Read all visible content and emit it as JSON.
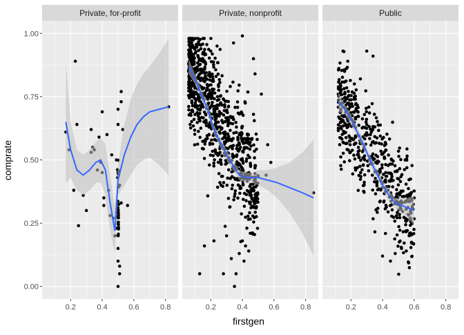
{
  "chart_data": {
    "type": "scatter",
    "xlabel": "firstgen",
    "ylabel": "comprate",
    "xlim": [
      0.02,
      0.88
    ],
    "ylim": [
      -0.05,
      1.05
    ],
    "x_ticks": [
      "0.2",
      "0.4",
      "0.6",
      "0.8"
    ],
    "y_ticks": [
      "0.00",
      "0.25",
      "0.50",
      "0.75",
      "1.00"
    ],
    "grid": true,
    "colors": {
      "panel_bg": "#ebebeb",
      "strip_bg": "#d9d9d9",
      "grid": "#ffffff",
      "points": "#000000",
      "smooth_line": "#3366ff",
      "ribbon": "#bfbfbf"
    },
    "facets": [
      {
        "label": "Private, for-profit",
        "smooth": [
          [
            0.17,
            0.65
          ],
          [
            0.2,
            0.54
          ],
          [
            0.24,
            0.46
          ],
          [
            0.28,
            0.44
          ],
          [
            0.32,
            0.46
          ],
          [
            0.36,
            0.49
          ],
          [
            0.39,
            0.5
          ],
          [
            0.42,
            0.46
          ],
          [
            0.45,
            0.33
          ],
          [
            0.48,
            0.22
          ],
          [
            0.5,
            0.42
          ],
          [
            0.54,
            0.52
          ],
          [
            0.58,
            0.59
          ],
          [
            0.62,
            0.64
          ],
          [
            0.66,
            0.67
          ],
          [
            0.7,
            0.69
          ],
          [
            0.76,
            0.7
          ],
          [
            0.82,
            0.71
          ]
        ],
        "band_upper": [
          [
            0.17,
            0.89
          ],
          [
            0.2,
            0.65
          ],
          [
            0.24,
            0.54
          ],
          [
            0.28,
            0.52
          ],
          [
            0.32,
            0.54
          ],
          [
            0.36,
            0.57
          ],
          [
            0.39,
            0.59
          ],
          [
            0.42,
            0.56
          ],
          [
            0.45,
            0.44
          ],
          [
            0.48,
            0.31
          ],
          [
            0.5,
            0.48
          ],
          [
            0.54,
            0.64
          ],
          [
            0.58,
            0.74
          ],
          [
            0.62,
            0.8
          ],
          [
            0.66,
            0.84
          ],
          [
            0.7,
            0.87
          ],
          [
            0.76,
            0.92
          ],
          [
            0.82,
            0.98
          ]
        ],
        "band_lower": [
          [
            0.17,
            0.41
          ],
          [
            0.2,
            0.43
          ],
          [
            0.24,
            0.38
          ],
          [
            0.28,
            0.36
          ],
          [
            0.32,
            0.38
          ],
          [
            0.36,
            0.41
          ],
          [
            0.39,
            0.41
          ],
          [
            0.42,
            0.36
          ],
          [
            0.45,
            0.22
          ],
          [
            0.48,
            0.13
          ],
          [
            0.5,
            0.36
          ],
          [
            0.54,
            0.4
          ],
          [
            0.58,
            0.44
          ],
          [
            0.62,
            0.48
          ],
          [
            0.66,
            0.5
          ],
          [
            0.7,
            0.51
          ],
          [
            0.76,
            0.48
          ],
          [
            0.82,
            0.44
          ]
        ],
        "cloud": {
          "n": 0,
          "x_range": [
            0.2,
            0.4
          ],
          "y_center": 0.5,
          "y_slope": 0,
          "spread": 0.1
        },
        "points": [
          [
            0.17,
            0.61
          ],
          [
            0.19,
            0.54
          ],
          [
            0.23,
            0.89
          ],
          [
            0.22,
            0.38
          ],
          [
            0.24,
            0.64
          ],
          [
            0.25,
            0.24
          ],
          [
            0.28,
            0.36
          ],
          [
            0.3,
            0.3
          ],
          [
            0.33,
            0.53
          ],
          [
            0.33,
            0.62
          ],
          [
            0.34,
            0.55
          ],
          [
            0.35,
            0.54
          ],
          [
            0.37,
            0.46
          ],
          [
            0.38,
            0.59
          ],
          [
            0.39,
            0.49
          ],
          [
            0.4,
            0.45
          ],
          [
            0.41,
            0.32
          ],
          [
            0.43,
            0.6
          ],
          [
            0.45,
            0.28
          ],
          [
            0.46,
            0.52
          ],
          [
            0.47,
            0.27
          ],
          [
            0.48,
            0.2
          ],
          [
            0.49,
            0.23
          ],
          [
            0.49,
            0.5
          ],
          [
            0.5,
            0.64
          ],
          [
            0.5,
            0.1
          ],
          [
            0.5,
            0.0
          ],
          [
            0.5,
            0.15
          ],
          [
            0.51,
            0.08
          ],
          [
            0.51,
            0.05
          ],
          [
            0.51,
            0.4
          ],
          [
            0.52,
            0.77
          ],
          [
            0.52,
            0.73
          ],
          [
            0.52,
            0.33
          ],
          [
            0.53,
            0.62
          ],
          [
            0.56,
            0.32
          ],
          [
            0.82,
            0.71
          ],
          [
            0.4,
            0.69
          ],
          [
            0.41,
            0.35
          ],
          [
            0.44,
            0.38
          ],
          [
            0.5,
            0.7
          ]
        ],
        "column": {
          "x": 0.5,
          "from": 0.17,
          "to": 0.5,
          "n": 28
        }
      },
      {
        "label": "Private, nonprofit",
        "smooth": [
          [
            0.06,
            0.87
          ],
          [
            0.1,
            0.82
          ],
          [
            0.14,
            0.76
          ],
          [
            0.18,
            0.7
          ],
          [
            0.22,
            0.62
          ],
          [
            0.26,
            0.57
          ],
          [
            0.3,
            0.52
          ],
          [
            0.34,
            0.48
          ],
          [
            0.38,
            0.44
          ],
          [
            0.42,
            0.43
          ],
          [
            0.46,
            0.43
          ],
          [
            0.5,
            0.43
          ],
          [
            0.56,
            0.42
          ],
          [
            0.62,
            0.41
          ],
          [
            0.7,
            0.39
          ],
          [
            0.78,
            0.37
          ],
          [
            0.85,
            0.35
          ]
        ],
        "band_upper": [
          [
            0.06,
            0.9
          ],
          [
            0.1,
            0.84
          ],
          [
            0.14,
            0.78
          ],
          [
            0.18,
            0.72
          ],
          [
            0.22,
            0.64
          ],
          [
            0.26,
            0.59
          ],
          [
            0.3,
            0.54
          ],
          [
            0.34,
            0.5
          ],
          [
            0.38,
            0.46
          ],
          [
            0.42,
            0.45
          ],
          [
            0.46,
            0.45
          ],
          [
            0.5,
            0.46
          ],
          [
            0.56,
            0.46
          ],
          [
            0.62,
            0.47
          ],
          [
            0.7,
            0.49
          ],
          [
            0.78,
            0.53
          ],
          [
            0.85,
            0.58
          ]
        ],
        "band_lower": [
          [
            0.06,
            0.84
          ],
          [
            0.1,
            0.8
          ],
          [
            0.14,
            0.74
          ],
          [
            0.18,
            0.68
          ],
          [
            0.22,
            0.6
          ],
          [
            0.26,
            0.55
          ],
          [
            0.3,
            0.5
          ],
          [
            0.34,
            0.46
          ],
          [
            0.38,
            0.42
          ],
          [
            0.42,
            0.41
          ],
          [
            0.46,
            0.41
          ],
          [
            0.5,
            0.4
          ],
          [
            0.56,
            0.38
          ],
          [
            0.62,
            0.35
          ],
          [
            0.7,
            0.29
          ],
          [
            0.78,
            0.21
          ],
          [
            0.85,
            0.12
          ]
        ],
        "cloud": {
          "n": 850,
          "x_range": [
            0.06,
            0.5
          ],
          "y_center": 0.87,
          "y_slope": -1.15,
          "spread": 0.11,
          "x_skew": 1.4
        },
        "points": [
          [
            0.4,
            0.99
          ],
          [
            0.47,
            0.9
          ],
          [
            0.48,
            0.84
          ],
          [
            0.52,
            0.76
          ],
          [
            0.47,
            0.68
          ],
          [
            0.56,
            0.56
          ],
          [
            0.58,
            0.49
          ],
          [
            0.55,
            0.44
          ],
          [
            0.85,
            0.37
          ],
          [
            0.45,
            0.21
          ],
          [
            0.42,
            0.16
          ],
          [
            0.4,
            0.18
          ],
          [
            0.38,
            0.13
          ],
          [
            0.36,
            0.05
          ],
          [
            0.33,
            0.11
          ],
          [
            0.28,
            0.05
          ],
          [
            0.22,
            0.18
          ],
          [
            0.16,
            0.16
          ],
          [
            0.13,
            0.05
          ],
          [
            0.3,
            0.2
          ],
          [
            0.35,
            0.0
          ],
          [
            0.41,
            0.1
          ],
          [
            0.44,
            0.14
          ],
          [
            0.2,
            0.93
          ],
          [
            0.24,
            0.95
          ]
        ]
      },
      {
        "label": "Public",
        "smooth": [
          [
            0.12,
            0.73
          ],
          [
            0.16,
            0.7
          ],
          [
            0.2,
            0.66
          ],
          [
            0.24,
            0.61
          ],
          [
            0.28,
            0.56
          ],
          [
            0.32,
            0.5
          ],
          [
            0.36,
            0.45
          ],
          [
            0.4,
            0.4
          ],
          [
            0.44,
            0.36
          ],
          [
            0.48,
            0.33
          ],
          [
            0.52,
            0.32
          ],
          [
            0.56,
            0.31
          ],
          [
            0.6,
            0.3
          ]
        ],
        "band_upper": [
          [
            0.12,
            0.77
          ],
          [
            0.16,
            0.72
          ],
          [
            0.2,
            0.68
          ],
          [
            0.24,
            0.63
          ],
          [
            0.28,
            0.58
          ],
          [
            0.32,
            0.52
          ],
          [
            0.36,
            0.47
          ],
          [
            0.4,
            0.42
          ],
          [
            0.44,
            0.38
          ],
          [
            0.48,
            0.35
          ],
          [
            0.52,
            0.35
          ],
          [
            0.56,
            0.35
          ],
          [
            0.6,
            0.36
          ]
        ],
        "band_lower": [
          [
            0.12,
            0.69
          ],
          [
            0.16,
            0.68
          ],
          [
            0.2,
            0.64
          ],
          [
            0.24,
            0.59
          ],
          [
            0.28,
            0.54
          ],
          [
            0.32,
            0.48
          ],
          [
            0.36,
            0.43
          ],
          [
            0.4,
            0.38
          ],
          [
            0.44,
            0.34
          ],
          [
            0.48,
            0.31
          ],
          [
            0.52,
            0.29
          ],
          [
            0.56,
            0.27
          ],
          [
            0.6,
            0.24
          ]
        ],
        "cloud": {
          "n": 520,
          "x_range": [
            0.12,
            0.6
          ],
          "y_center": 0.73,
          "y_slope": -1.0,
          "spread": 0.1,
          "x_skew": 1.2
        },
        "points": [
          [
            0.15,
            0.93
          ],
          [
            0.18,
            0.89
          ],
          [
            0.3,
            0.93
          ],
          [
            0.34,
            0.91
          ],
          [
            0.26,
            0.82
          ],
          [
            0.55,
            0.14
          ],
          [
            0.52,
            0.15
          ],
          [
            0.48,
            0.13
          ],
          [
            0.6,
            0.35
          ],
          [
            0.58,
            0.29
          ],
          [
            0.14,
            0.66
          ],
          [
            0.12,
            0.76
          ],
          [
            0.16,
            0.85
          ],
          [
            0.45,
            0.1
          ],
          [
            0.4,
            0.12
          ]
        ]
      }
    ]
  }
}
